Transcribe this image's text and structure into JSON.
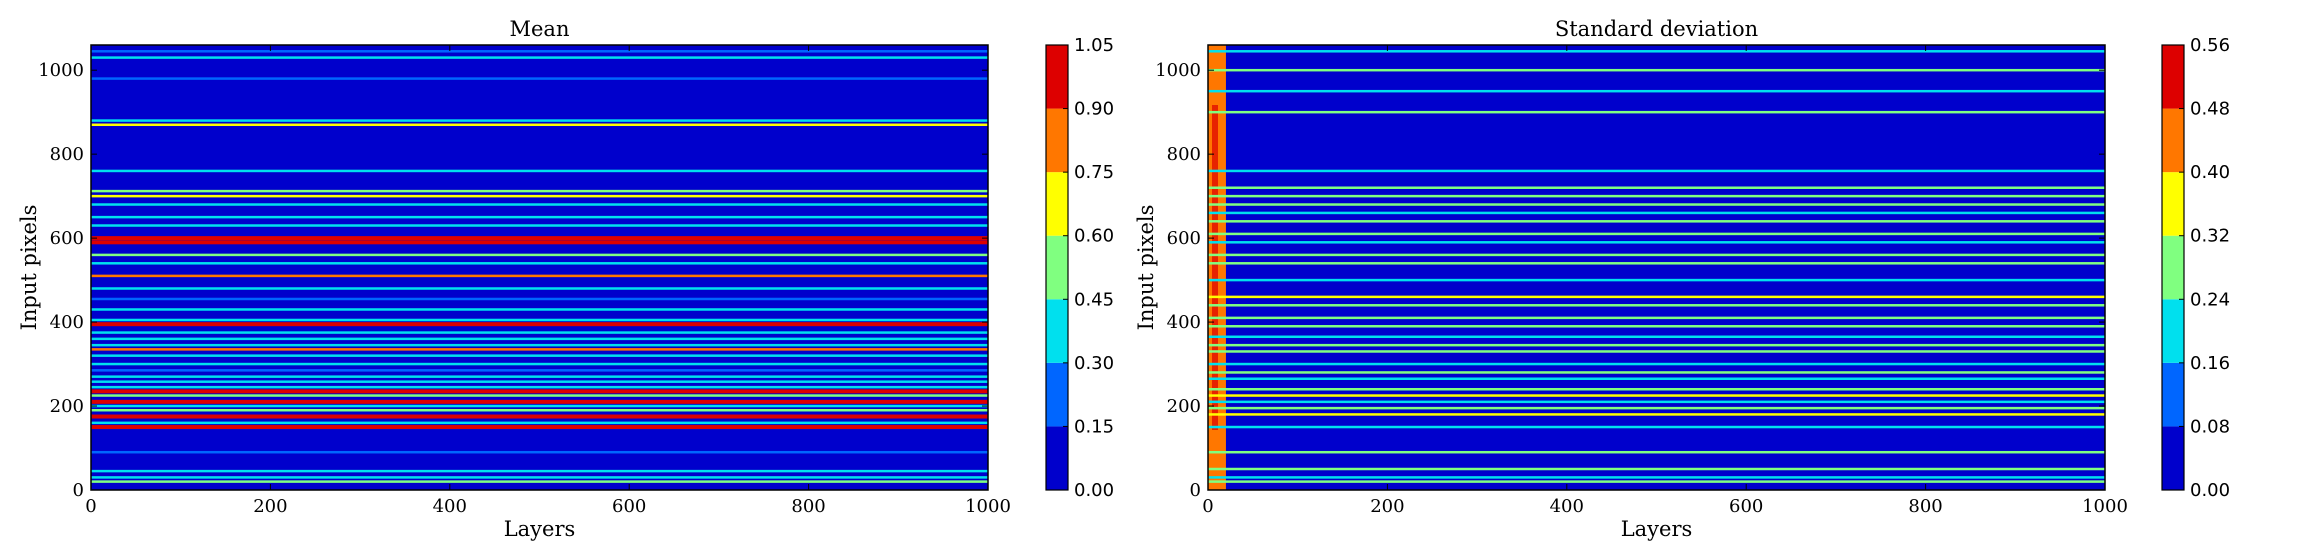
{
  "chart_data": [
    {
      "type": "heatmap",
      "title": "Mean",
      "xlabel": "Layers",
      "ylabel": "Input pixels",
      "xlim": [
        0,
        1000
      ],
      "ylim": [
        0,
        1060
      ],
      "xticks": [
        "0",
        "200",
        "400",
        "600",
        "800",
        "1000"
      ],
      "yticks": [
        "0",
        "200",
        "400",
        "600",
        "800",
        "1000"
      ],
      "colorbar": {
        "levels": [
          0.0,
          0.15,
          0.3,
          0.45,
          0.6,
          0.75,
          0.9,
          1.05
        ],
        "ticks": [
          "0.00",
          "0.15",
          "0.30",
          "0.45",
          "0.60",
          "0.75",
          "0.90",
          "1.05"
        ],
        "colors": [
          "#0000cc",
          "#0066ff",
          "#00e0ee",
          "#80ff80",
          "#ffff00",
          "#ff7700",
          "#dd0000"
        ]
      },
      "rows": [
        {
          "y": 20,
          "value": 0.55
        },
        {
          "y": 30,
          "value": 0.35
        },
        {
          "y": 45,
          "value": 0.3
        },
        {
          "y": 90,
          "value": 0.2
        },
        {
          "y": 150,
          "value": 0.95
        },
        {
          "y": 160,
          "value": 0.4
        },
        {
          "y": 175,
          "value": 0.9
        },
        {
          "y": 190,
          "value": 0.55
        },
        {
          "y": 200,
          "value": 0.35
        },
        {
          "y": 210,
          "value": 0.95
        },
        {
          "y": 225,
          "value": 0.5
        },
        {
          "y": 235,
          "value": 1.0
        },
        {
          "y": 245,
          "value": 0.4
        },
        {
          "y": 258,
          "value": 0.35
        },
        {
          "y": 270,
          "value": 0.3
        },
        {
          "y": 285,
          "value": 0.25
        },
        {
          "y": 300,
          "value": 0.4
        },
        {
          "y": 320,
          "value": 0.3
        },
        {
          "y": 335,
          "value": 0.85
        },
        {
          "y": 345,
          "value": 0.4
        },
        {
          "y": 360,
          "value": 0.35
        },
        {
          "y": 375,
          "value": 0.3
        },
        {
          "y": 395,
          "value": 0.95
        },
        {
          "y": 405,
          "value": 0.4
        },
        {
          "y": 430,
          "value": 0.3
        },
        {
          "y": 455,
          "value": 0.25
        },
        {
          "y": 480,
          "value": 0.35
        },
        {
          "y": 510,
          "value": 0.8
        },
        {
          "y": 540,
          "value": 0.3
        },
        {
          "y": 560,
          "value": 0.45
        },
        {
          "y": 590,
          "value": 1.0
        },
        {
          "y": 600,
          "value": 0.9
        },
        {
          "y": 630,
          "value": 0.3
        },
        {
          "y": 650,
          "value": 0.4
        },
        {
          "y": 680,
          "value": 0.3
        },
        {
          "y": 700,
          "value": 0.65
        },
        {
          "y": 712,
          "value": 0.55
        },
        {
          "y": 760,
          "value": 0.35
        },
        {
          "y": 870,
          "value": 0.6
        },
        {
          "y": 880,
          "value": 0.3
        },
        {
          "y": 980,
          "value": 0.25
        },
        {
          "y": 1030,
          "value": 0.3
        },
        {
          "y": 1045,
          "value": 0.25
        }
      ]
    },
    {
      "type": "heatmap",
      "title": "Standard deviation",
      "xlabel": "Layers",
      "ylabel": "Input pixels",
      "xlim": [
        0,
        1000
      ],
      "ylim": [
        0,
        1060
      ],
      "xticks": [
        "0",
        "200",
        "400",
        "600",
        "800",
        "1000"
      ],
      "yticks": [
        "0",
        "200",
        "400",
        "600",
        "800",
        "1000"
      ],
      "colorbar": {
        "levels": [
          0.0,
          0.08,
          0.16,
          0.24,
          0.32,
          0.4,
          0.48,
          0.56
        ],
        "ticks": [
          "0.00",
          "0.08",
          "0.16",
          "0.24",
          "0.32",
          "0.40",
          "0.48",
          "0.56"
        ],
        "colors": [
          "#0000cc",
          "#0066ff",
          "#00e0ee",
          "#80ff80",
          "#ffff00",
          "#ff7700",
          "#dd0000"
        ]
      },
      "rows": [
        {
          "y": 20,
          "value": 0.3
        },
        {
          "y": 30,
          "value": 0.2
        },
        {
          "y": 50,
          "value": 0.3
        },
        {
          "y": 90,
          "value": 0.28
        },
        {
          "y": 150,
          "value": 0.2
        },
        {
          "y": 180,
          "value": 0.35
        },
        {
          "y": 195,
          "value": 0.3
        },
        {
          "y": 210,
          "value": 0.2
        },
        {
          "y": 225,
          "value": 0.34
        },
        {
          "y": 240,
          "value": 0.3
        },
        {
          "y": 265,
          "value": 0.2
        },
        {
          "y": 280,
          "value": 0.3
        },
        {
          "y": 300,
          "value": 0.2
        },
        {
          "y": 330,
          "value": 0.3
        },
        {
          "y": 345,
          "value": 0.25
        },
        {
          "y": 365,
          "value": 0.2
        },
        {
          "y": 390,
          "value": 0.3
        },
        {
          "y": 410,
          "value": 0.25
        },
        {
          "y": 440,
          "value": 0.3
        },
        {
          "y": 460,
          "value": 0.38
        },
        {
          "y": 500,
          "value": 0.2
        },
        {
          "y": 540,
          "value": 0.3
        },
        {
          "y": 560,
          "value": 0.25
        },
        {
          "y": 590,
          "value": 0.2
        },
        {
          "y": 610,
          "value": 0.3
        },
        {
          "y": 640,
          "value": 0.3
        },
        {
          "y": 660,
          "value": 0.2
        },
        {
          "y": 680,
          "value": 0.3
        },
        {
          "y": 700,
          "value": 0.3
        },
        {
          "y": 720,
          "value": 0.25
        },
        {
          "y": 760,
          "value": 0.2
        },
        {
          "y": 900,
          "value": 0.25
        },
        {
          "y": 950,
          "value": 0.2
        },
        {
          "y": 1000,
          "value": 0.25
        },
        {
          "y": 1045,
          "value": 0.2
        }
      ],
      "edge_band": {
        "x_end": 20,
        "value": 0.4
      }
    }
  ]
}
